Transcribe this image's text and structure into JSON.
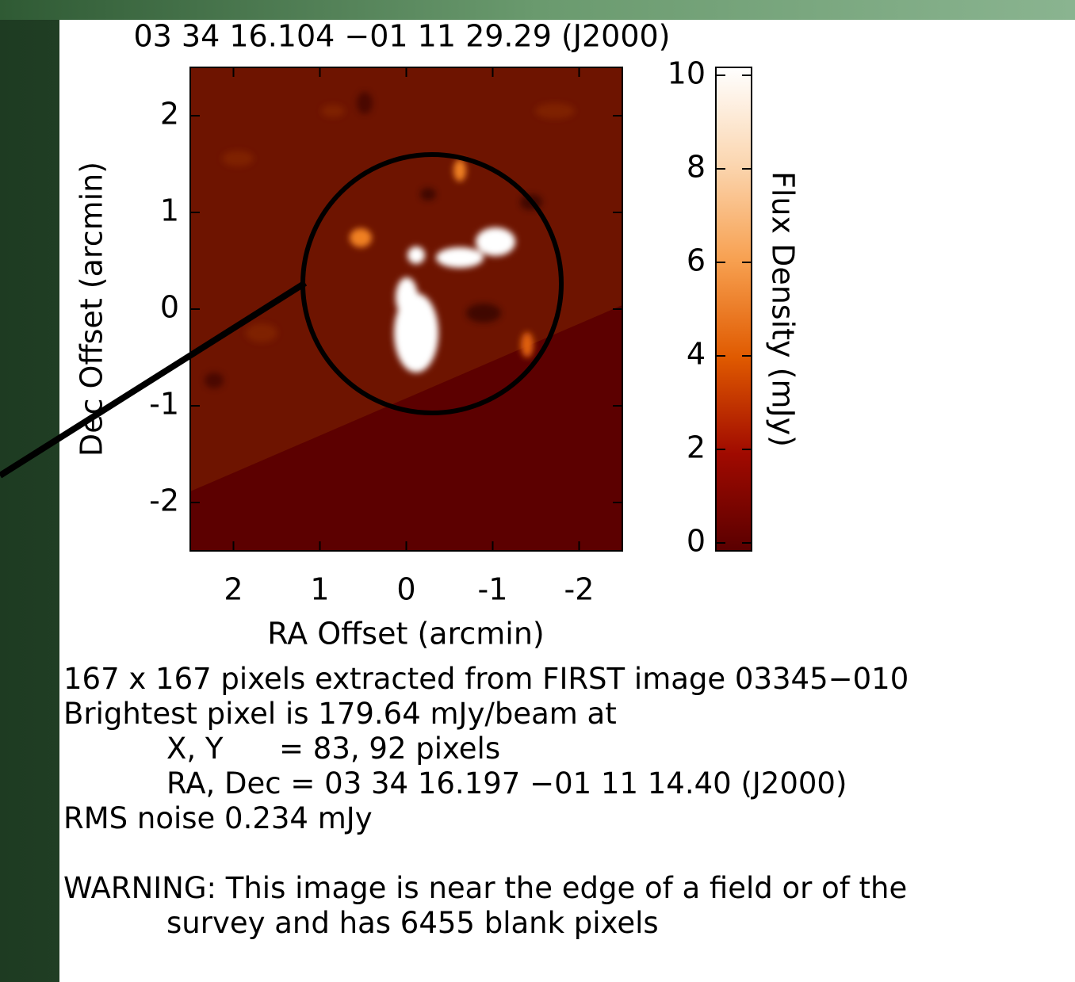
{
  "chart_data": {
    "type": "image",
    "title": "03 34 16.104 −01 11 29.29 (J2000)",
    "xlabel": "RA Offset (arcmin)",
    "ylabel": "Dec Offset (arcmin)",
    "xlim": [
      2.5,
      -2.5
    ],
    "xticks": [
      2,
      1,
      0,
      -1,
      -2
    ],
    "ylim": [
      -2.5,
      2.5
    ],
    "yticks": [
      -2,
      -1,
      0,
      1,
      2
    ],
    "colorbar": {
      "label": "Flux Density (mJy)",
      "lim": [
        0,
        10
      ],
      "ticks": [
        0,
        2,
        4,
        6,
        8,
        10
      ]
    }
  },
  "caption": {
    "lines": [
      "167 x 167 pixels extracted from FIRST image 03345−010",
      "Brightest pixel is 179.64 mJy/beam at",
      "X, Y      = 83, 92 pixels",
      "RA, Dec = 03 34 16.197 −01 11 14.40 (J2000)",
      "RMS noise 0.234 mJy"
    ],
    "warning": [
      "WARNING: This image is near the edge of a field or of the",
      "survey and has 6455 blank pixels"
    ]
  }
}
